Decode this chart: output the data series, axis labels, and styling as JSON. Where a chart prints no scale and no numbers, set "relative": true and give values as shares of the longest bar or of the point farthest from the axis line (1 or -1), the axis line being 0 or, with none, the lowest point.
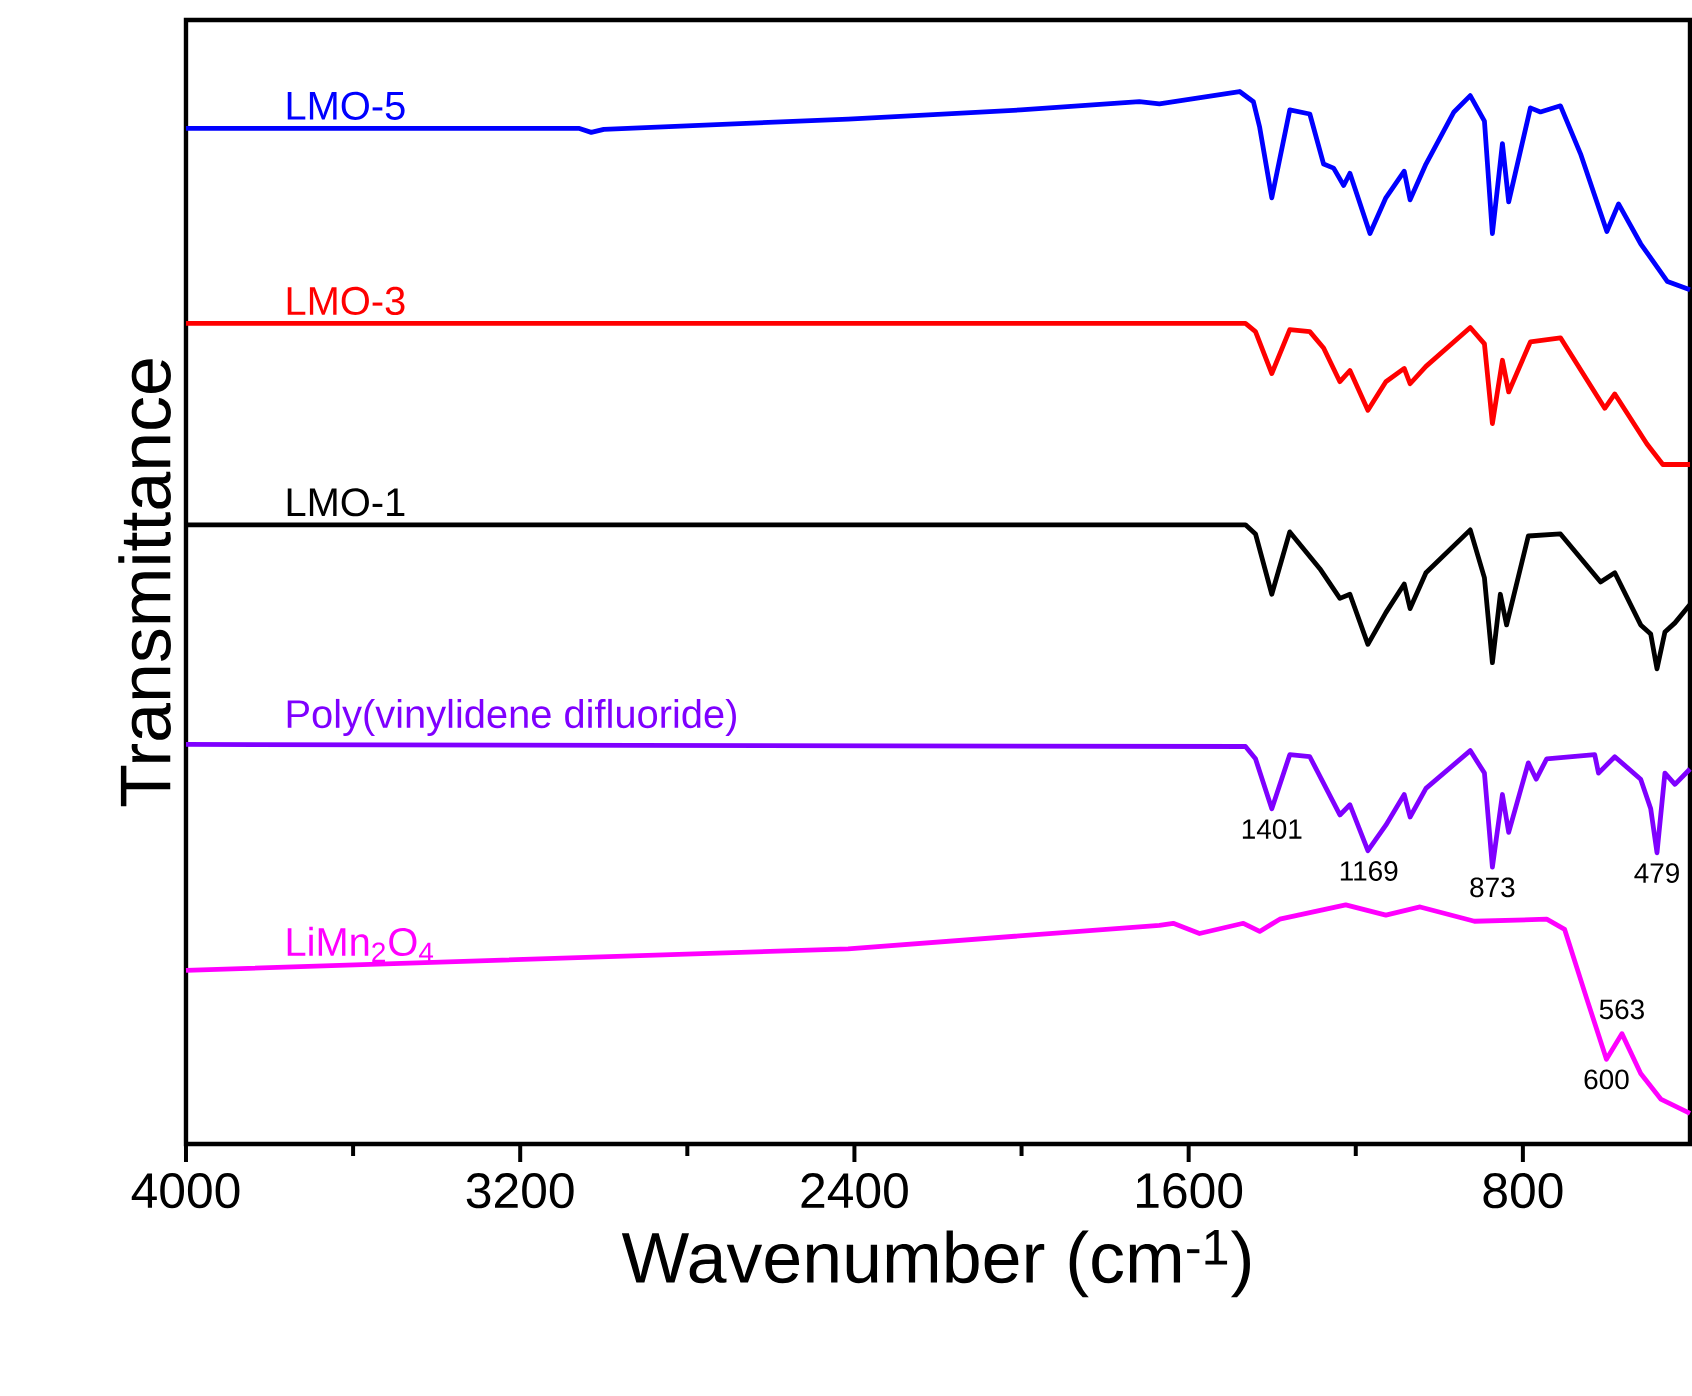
{
  "chart_data": {
    "type": "line",
    "relative": true,
    "xlabel": "Wavenumber (cm$^{-1}$)",
    "ylabel": "Transmittance",
    "xlim": [
      4000,
      400
    ],
    "xticks": [
      4000,
      3200,
      2400,
      1600,
      800
    ],
    "series": [
      {
        "name": "LMO-5",
        "color": "#0000ff",
        "x": [
          4000,
          3060,
          3030,
          3000,
          2415,
          2002,
          1718,
          1670,
          1478,
          1445,
          1430,
          1401,
          1358,
          1310,
          1277,
          1253,
          1229,
          1214,
          1166,
          1128,
          1084,
          1070,
          1032,
          965,
          926,
          892,
          873,
          849,
          834,
          782,
          758,
          710,
          662,
          599,
          571,
          518,
          454,
          400
        ],
        "values": [
          0.964,
          0.964,
          0.96,
          0.963,
          0.973,
          0.982,
          0.99,
          0.988,
          1.0,
          0.99,
          0.965,
          0.896,
          0.982,
          0.978,
          0.929,
          0.925,
          0.908,
          0.92,
          0.861,
          0.896,
          0.922,
          0.894,
          0.929,
          0.98,
          0.996,
          0.971,
          0.861,
          0.949,
          0.892,
          0.984,
          0.98,
          0.986,
          0.939,
          0.863,
          0.89,
          0.851,
          0.814,
          0.806
        ]
      },
      {
        "name": "LMO-3",
        "color": "#ff0000",
        "x": [
          4000,
          1464,
          1440,
          1401,
          1358,
          1310,
          1277,
          1238,
          1214,
          1171,
          1128,
          1084,
          1070,
          1032,
          926,
          892,
          873,
          849,
          834,
          782,
          710,
          604,
          580,
          503,
          465,
          400
        ],
        "values": [
          0.773,
          0.773,
          0.765,
          0.724,
          0.767,
          0.765,
          0.749,
          0.716,
          0.727,
          0.688,
          0.716,
          0.729,
          0.714,
          0.731,
          0.769,
          0.753,
          0.675,
          0.737,
          0.706,
          0.755,
          0.759,
          0.69,
          0.704,
          0.655,
          0.635,
          0.635
        ]
      },
      {
        "name": "LMO-1",
        "color": "#000000",
        "x": [
          4000,
          1464,
          1440,
          1401,
          1358,
          1286,
          1238,
          1214,
          1171,
          1128,
          1084,
          1070,
          1032,
          926,
          892,
          873,
          854,
          839,
          787,
          710,
          614,
          580,
          518,
          494,
          479,
          460,
          436,
          400
        ],
        "values": [
          0.576,
          0.576,
          0.567,
          0.508,
          0.569,
          0.533,
          0.504,
          0.508,
          0.459,
          0.49,
          0.518,
          0.494,
          0.529,
          0.571,
          0.524,
          0.441,
          0.508,
          0.478,
          0.565,
          0.567,
          0.52,
          0.529,
          0.478,
          0.469,
          0.435,
          0.471,
          0.48,
          0.498
        ]
      },
      {
        "name": "Poly(vinylidene difluoride)",
        "color": "#7f00ff",
        "x": [
          4000,
          1464,
          1440,
          1401,
          1358,
          1310,
          1238,
          1214,
          1171,
          1128,
          1084,
          1070,
          1032,
          926,
          892,
          873,
          849,
          834,
          787,
          768,
          743,
          628,
          619,
          580,
          518,
          494,
          479,
          460,
          436,
          400
        ],
        "values": [
          0.361,
          0.359,
          0.347,
          0.298,
          0.351,
          0.349,
          0.292,
          0.302,
          0.257,
          0.282,
          0.312,
          0.29,
          0.318,
          0.355,
          0.333,
          0.241,
          0.312,
          0.275,
          0.343,
          0.327,
          0.347,
          0.351,
          0.333,
          0.349,
          0.327,
          0.298,
          0.255,
          0.333,
          0.322,
          0.337
        ]
      },
      {
        "name": "LiMn$_{2}$O$_{4}$",
        "color": "#ff00ff",
        "x": [
          4000,
          2415,
          1670,
          1637,
          1574,
          1469,
          1430,
          1382,
          1224,
          1128,
          1046,
          916,
          743,
          700,
          647,
          600,
          563,
          518,
          470,
          400
        ],
        "values": [
          0.14,
          0.161,
          0.184,
          0.186,
          0.176,
          0.186,
          0.178,
          0.19,
          0.204,
          0.194,
          0.202,
          0.188,
          0.19,
          0.18,
          0.112,
          0.053,
          0.078,
          0.039,
          0.014,
          0.0
        ]
      }
    ],
    "annotations": [
      {
        "text": "1401",
        "x": 1401,
        "y": 0.298
      },
      {
        "text": "1169",
        "x": 1169,
        "y": 0.257
      },
      {
        "text": "873",
        "x": 873,
        "y": 0.241
      },
      {
        "text": "479",
        "x": 479,
        "y": 0.255
      },
      {
        "text": "600",
        "x": 600,
        "y": 0.053
      },
      {
        "text": "563",
        "x": 563,
        "y": 0.078
      }
    ]
  }
}
